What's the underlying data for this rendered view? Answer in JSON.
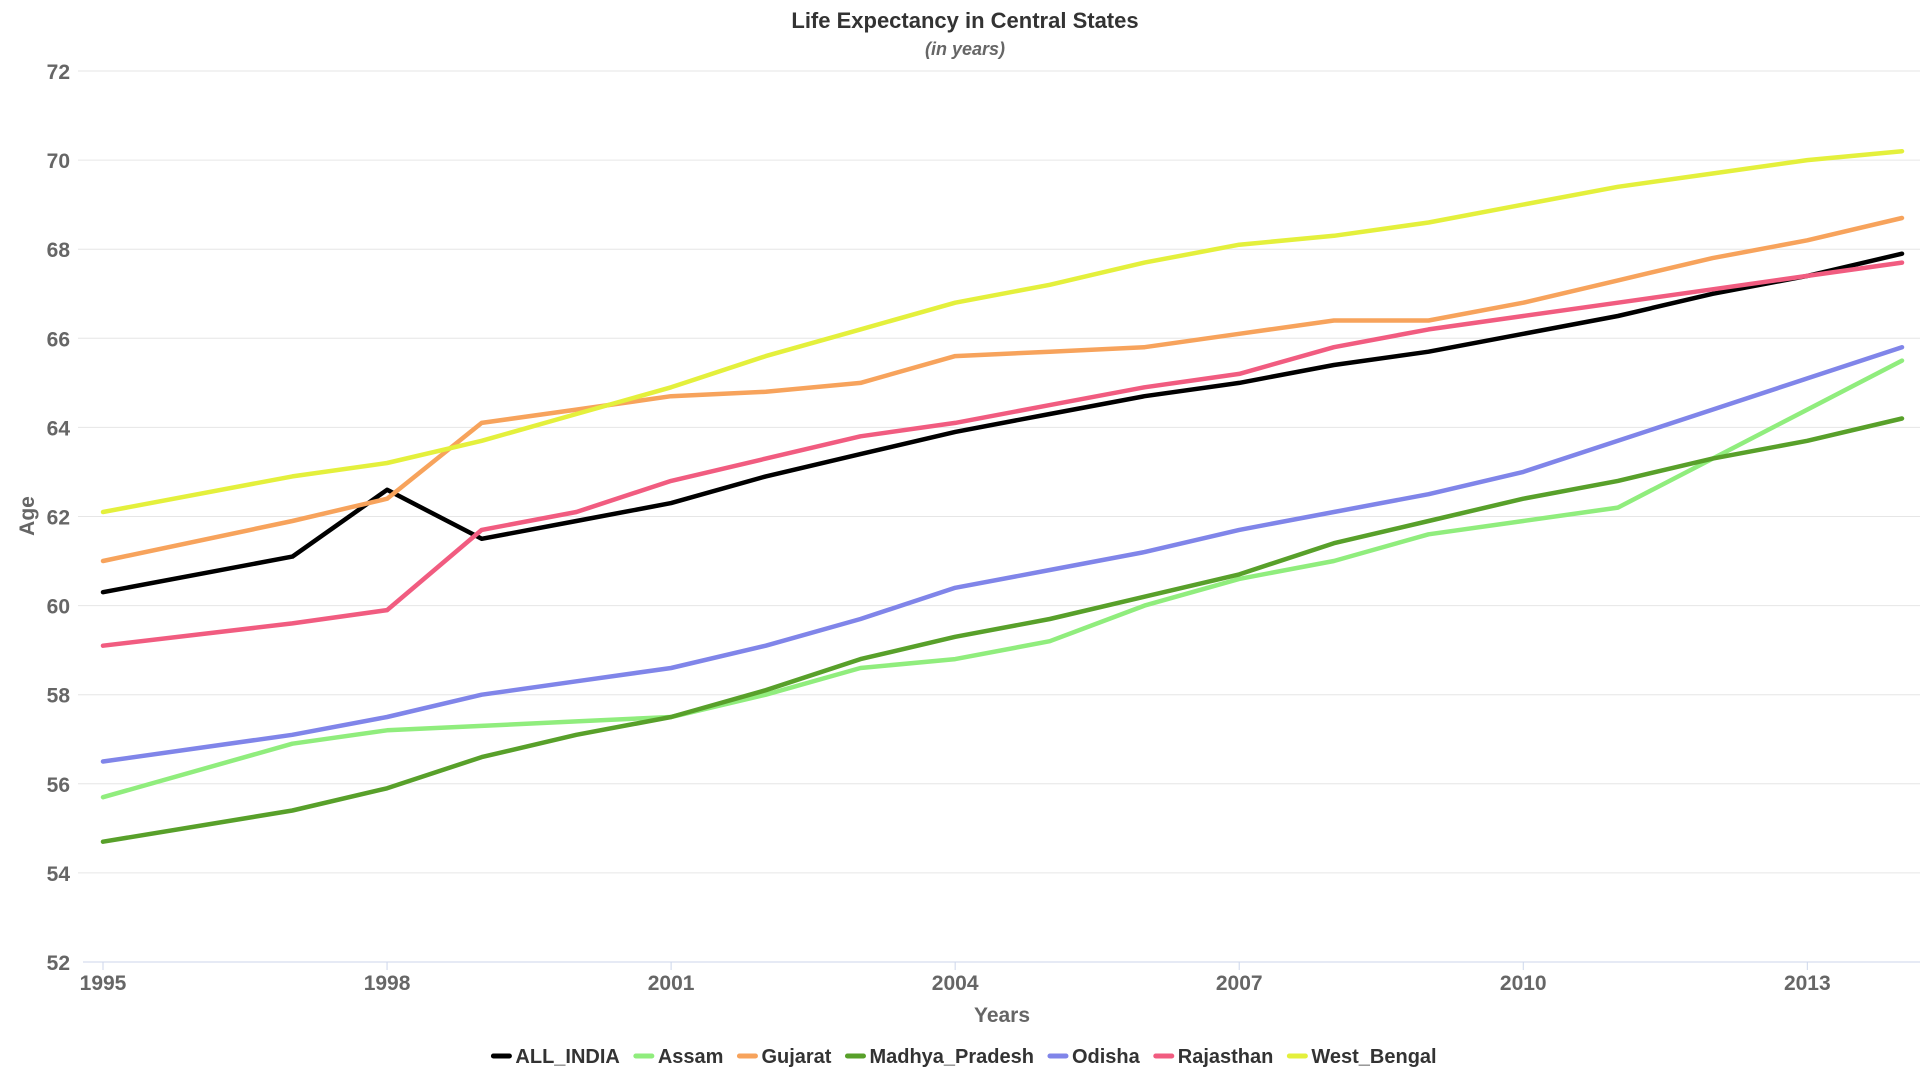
{
  "chart_data": {
    "type": "line",
    "title": "Life Expectancy in Central States",
    "subtitle": "(in years)",
    "xlabel": "Years",
    "ylabel": "Age",
    "xlim": [
      1995,
      2014
    ],
    "ylim": [
      52,
      72
    ],
    "x_ticks": [
      "1995",
      "1998",
      "2001",
      "2004",
      "2007",
      "2010",
      "2013"
    ],
    "y_ticks": [
      "52",
      "54",
      "56",
      "58",
      "60",
      "62",
      "64",
      "66",
      "68",
      "70",
      "72"
    ],
    "grid": true,
    "legend_position": "bottom",
    "series": [
      {
        "name": "ALL_INDIA",
        "color": "#000000",
        "x": [
          1995,
          1997,
          1998,
          1999,
          2000,
          2001,
          2002,
          2003,
          2004,
          2005,
          2006,
          2007,
          2008,
          2009,
          2010,
          2011,
          2012,
          2013,
          2014
        ],
        "values": [
          60.3,
          61.1,
          62.6,
          61.5,
          61.9,
          62.3,
          62.9,
          63.4,
          63.9,
          64.3,
          64.7,
          65.0,
          65.4,
          65.7,
          66.1,
          66.5,
          67.0,
          67.4,
          67.9
        ]
      },
      {
        "name": "Assam",
        "color": "#90ed7d",
        "x": [
          1995,
          1997,
          1998,
          1999,
          2000,
          2001,
          2002,
          2003,
          2004,
          2005,
          2006,
          2007,
          2008,
          2009,
          2010,
          2011,
          2012,
          2013,
          2014
        ],
        "values": [
          55.7,
          56.9,
          57.2,
          57.3,
          57.4,
          57.5,
          58.0,
          58.6,
          58.8,
          59.2,
          60.0,
          60.6,
          61.0,
          61.6,
          61.9,
          62.2,
          63.3,
          64.4,
          65.5
        ]
      },
      {
        "name": "Gujarat",
        "color": "#f7a35c",
        "x": [
          1995,
          1997,
          1998,
          1999,
          2000,
          2001,
          2002,
          2003,
          2004,
          2005,
          2006,
          2007,
          2008,
          2009,
          2010,
          2011,
          2012,
          2013,
          2014
        ],
        "values": [
          61.0,
          61.9,
          62.4,
          64.1,
          64.4,
          64.7,
          64.8,
          65.0,
          65.6,
          65.7,
          65.8,
          66.1,
          66.4,
          66.4,
          66.8,
          67.3,
          67.8,
          68.2,
          68.7
        ]
      },
      {
        "name": "Madhya_Pradesh",
        "color": "#58a02a",
        "x": [
          1995,
          1997,
          1998,
          1999,
          2000,
          2001,
          2002,
          2003,
          2004,
          2005,
          2006,
          2007,
          2008,
          2009,
          2010,
          2011,
          2012,
          2013,
          2014
        ],
        "values": [
          54.7,
          55.4,
          55.9,
          56.6,
          57.1,
          57.5,
          58.1,
          58.8,
          59.3,
          59.7,
          60.2,
          60.7,
          61.4,
          61.9,
          62.4,
          62.8,
          63.3,
          63.7,
          64.2
        ]
      },
      {
        "name": "Odisha",
        "color": "#8085e9",
        "x": [
          1995,
          1997,
          1998,
          1999,
          2000,
          2001,
          2002,
          2003,
          2004,
          2005,
          2006,
          2007,
          2008,
          2009,
          2010,
          2011,
          2012,
          2013,
          2014
        ],
        "values": [
          56.5,
          57.1,
          57.5,
          58.0,
          58.3,
          58.6,
          59.1,
          59.7,
          60.4,
          60.8,
          61.2,
          61.7,
          62.1,
          62.5,
          63.0,
          63.7,
          64.4,
          65.1,
          65.8
        ]
      },
      {
        "name": "Rajasthan",
        "color": "#f15c80",
        "x": [
          1995,
          1997,
          1998,
          1999,
          2000,
          2001,
          2002,
          2003,
          2004,
          2005,
          2006,
          2007,
          2008,
          2009,
          2010,
          2011,
          2012,
          2013,
          2014
        ],
        "values": [
          59.1,
          59.6,
          59.9,
          61.7,
          62.1,
          62.8,
          63.3,
          63.8,
          64.1,
          64.5,
          64.9,
          65.2,
          65.8,
          66.2,
          66.5,
          66.8,
          67.1,
          67.4,
          67.7
        ]
      },
      {
        "name": "West_Bengal",
        "color": "#e4f03c",
        "x": [
          1995,
          1997,
          1998,
          1999,
          2000,
          2001,
          2002,
          2003,
          2004,
          2005,
          2006,
          2007,
          2008,
          2009,
          2010,
          2011,
          2012,
          2013,
          2014
        ],
        "values": [
          62.1,
          62.9,
          63.2,
          63.7,
          64.3,
          64.9,
          65.6,
          66.2,
          66.8,
          67.2,
          67.7,
          68.1,
          68.3,
          68.6,
          69.0,
          69.4,
          69.7,
          70.0,
          70.2
        ]
      }
    ]
  }
}
